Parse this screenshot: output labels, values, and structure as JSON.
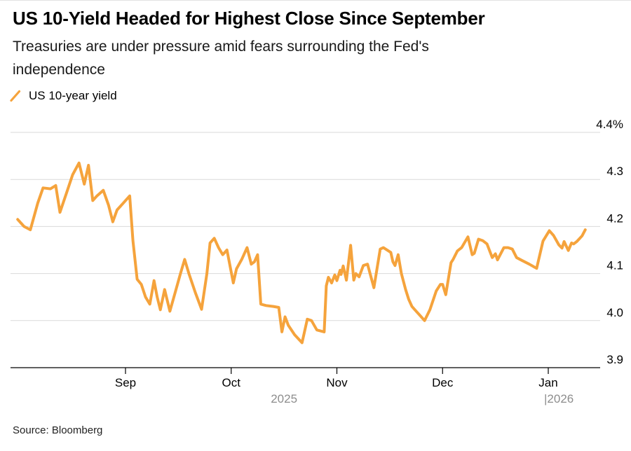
{
  "header": {
    "title": "US 10-Yield Headed for Highest Close Since September",
    "subtitle_line1": "Treasuries are under pressure amid fears surrounding the Fed's",
    "subtitle_line2": "independence"
  },
  "legend": {
    "label": "US 10-year yield"
  },
  "footer": {
    "source": "Source: Bloomberg"
  },
  "colors": {
    "line": "#F5A33C",
    "grid": "#D9D9D9",
    "axis": "#000000",
    "axis_label": "#000000",
    "year_label": "#8D8D8D"
  },
  "chart_data": {
    "type": "line",
    "title": "US 10-Yield Headed for Highest Close Since September",
    "subtitle": "Treasuries are under pressure amid fears surrounding the Fed's independence",
    "xlabel": "",
    "ylabel": "US 10-year yield (%)",
    "x_unit": "months, 0 = Sep 1 2025 (negative = Aug 2025)",
    "ylim": [
      3.9,
      4.4
    ],
    "grid": "horizontal",
    "legend_position": "top-left",
    "source": "Source: Bloomberg",
    "y_axis": {
      "side": "right",
      "ticks": [
        {
          "v": 4.4,
          "label": "4.4%"
        },
        {
          "v": 4.3,
          "label": "4.3"
        },
        {
          "v": 4.2,
          "label": "4.2"
        },
        {
          "v": 4.1,
          "label": "4.1"
        },
        {
          "v": 4.0,
          "label": "4.0"
        },
        {
          "v": 3.9,
          "label": "3.9"
        }
      ]
    },
    "x_axis": {
      "ticks": [
        {
          "t": 0,
          "label": "Sep"
        },
        {
          "t": 1,
          "label": "Oct"
        },
        {
          "t": 2,
          "label": "Nov"
        },
        {
          "t": 3,
          "label": "Dec"
        },
        {
          "t": 4,
          "label": "Jan"
        }
      ],
      "year_labels": [
        {
          "label": "2025",
          "t": 1.5,
          "align": "middle",
          "dx": 0
        },
        {
          "label": "|2026",
          "t": 4,
          "align": "start",
          "dx": -6
        }
      ]
    },
    "series": [
      {
        "name": "US 10-year yield",
        "color": "#F5A33C",
        "points": [
          [
            -1.02,
            4.215
          ],
          [
            -0.96,
            4.2
          ],
          [
            -0.9,
            4.193
          ],
          [
            -0.83,
            4.25
          ],
          [
            -0.78,
            4.282
          ],
          [
            -0.71,
            4.28
          ],
          [
            -0.66,
            4.287
          ],
          [
            -0.62,
            4.23
          ],
          [
            -0.56,
            4.27
          ],
          [
            -0.5,
            4.31
          ],
          [
            -0.44,
            4.335
          ],
          [
            -0.39,
            4.29
          ],
          [
            -0.35,
            4.33
          ],
          [
            -0.31,
            4.255
          ],
          [
            -0.27,
            4.265
          ],
          [
            -0.21,
            4.277
          ],
          [
            -0.16,
            4.245
          ],
          [
            -0.12,
            4.21
          ],
          [
            -0.08,
            4.235
          ],
          [
            -0.02,
            4.25
          ],
          [
            0.04,
            4.265
          ],
          [
            0.07,
            4.17
          ],
          [
            0.11,
            4.088
          ],
          [
            0.15,
            4.077
          ],
          [
            0.19,
            4.05
          ],
          [
            0.23,
            4.035
          ],
          [
            0.27,
            4.085
          ],
          [
            0.3,
            4.05
          ],
          [
            0.33,
            4.023
          ],
          [
            0.37,
            4.066
          ],
          [
            0.42,
            4.02
          ],
          [
            0.47,
            4.06
          ],
          [
            0.52,
            4.1
          ],
          [
            0.56,
            4.13
          ],
          [
            0.6,
            4.1
          ],
          [
            0.66,
            4.06
          ],
          [
            0.72,
            4.024
          ],
          [
            0.77,
            4.1
          ],
          [
            0.8,
            4.165
          ],
          [
            0.84,
            4.175
          ],
          [
            0.88,
            4.155
          ],
          [
            0.92,
            4.14
          ],
          [
            0.96,
            4.15
          ],
          [
            1.02,
            4.08
          ],
          [
            1.05,
            4.11
          ],
          [
            1.1,
            4.13
          ],
          [
            1.15,
            4.155
          ],
          [
            1.19,
            4.12
          ],
          [
            1.22,
            4.125
          ],
          [
            1.25,
            4.14
          ],
          [
            1.28,
            4.035
          ],
          [
            1.33,
            4.032
          ],
          [
            1.4,
            4.03
          ],
          [
            1.45,
            4.028
          ],
          [
            1.48,
            3.976
          ],
          [
            1.51,
            4.008
          ],
          [
            1.54,
            3.99
          ],
          [
            1.6,
            3.97
          ],
          [
            1.67,
            3.953
          ],
          [
            1.72,
            4.003
          ],
          [
            1.76,
            4.0
          ],
          [
            1.81,
            3.98
          ],
          [
            1.88,
            3.976
          ],
          [
            1.9,
            4.074
          ],
          [
            1.92,
            4.092
          ],
          [
            1.95,
            4.08
          ],
          [
            1.98,
            4.097
          ],
          [
            2.0,
            4.085
          ],
          [
            2.03,
            4.107
          ],
          [
            2.04,
            4.098
          ],
          [
            2.06,
            4.116
          ],
          [
            2.09,
            4.086
          ],
          [
            2.13,
            4.16
          ],
          [
            2.16,
            4.086
          ],
          [
            2.18,
            4.1
          ],
          [
            2.21,
            4.093
          ],
          [
            2.25,
            4.117
          ],
          [
            2.29,
            4.12
          ],
          [
            2.35,
            4.07
          ],
          [
            2.41,
            4.152
          ],
          [
            2.44,
            4.155
          ],
          [
            2.51,
            4.145
          ],
          [
            2.53,
            4.125
          ],
          [
            2.55,
            4.117
          ],
          [
            2.58,
            4.14
          ],
          [
            2.61,
            4.1
          ],
          [
            2.65,
            4.066
          ],
          [
            2.68,
            4.045
          ],
          [
            2.71,
            4.03
          ],
          [
            2.75,
            4.02
          ],
          [
            2.79,
            4.01
          ],
          [
            2.83,
            4.0
          ],
          [
            2.88,
            4.023
          ],
          [
            2.94,
            4.063
          ],
          [
            2.98,
            4.077
          ],
          [
            3.0,
            4.077
          ],
          [
            3.03,
            4.055
          ],
          [
            3.08,
            4.123
          ],
          [
            3.1,
            4.13
          ],
          [
            3.14,
            4.148
          ],
          [
            3.18,
            4.155
          ],
          [
            3.24,
            4.178
          ],
          [
            3.28,
            4.14
          ],
          [
            3.3,
            4.143
          ],
          [
            3.34,
            4.173
          ],
          [
            3.38,
            4.17
          ],
          [
            3.42,
            4.163
          ],
          [
            3.47,
            4.134
          ],
          [
            3.5,
            4.142
          ],
          [
            3.52,
            4.129
          ],
          [
            3.58,
            4.155
          ],
          [
            3.62,
            4.155
          ],
          [
            3.66,
            4.152
          ],
          [
            3.7,
            4.134
          ],
          [
            3.75,
            4.128
          ],
          [
            3.82,
            4.12
          ],
          [
            3.89,
            4.111
          ],
          [
            3.95,
            4.169
          ],
          [
            4.01,
            4.191
          ],
          [
            4.05,
            4.181
          ],
          [
            4.1,
            4.161
          ],
          [
            4.13,
            4.154
          ],
          [
            4.15,
            4.168
          ],
          [
            4.19,
            4.149
          ],
          [
            4.22,
            4.165
          ],
          [
            4.24,
            4.163
          ],
          [
            4.27,
            4.168
          ],
          [
            4.32,
            4.18
          ],
          [
            4.35,
            4.193
          ]
        ]
      }
    ]
  }
}
